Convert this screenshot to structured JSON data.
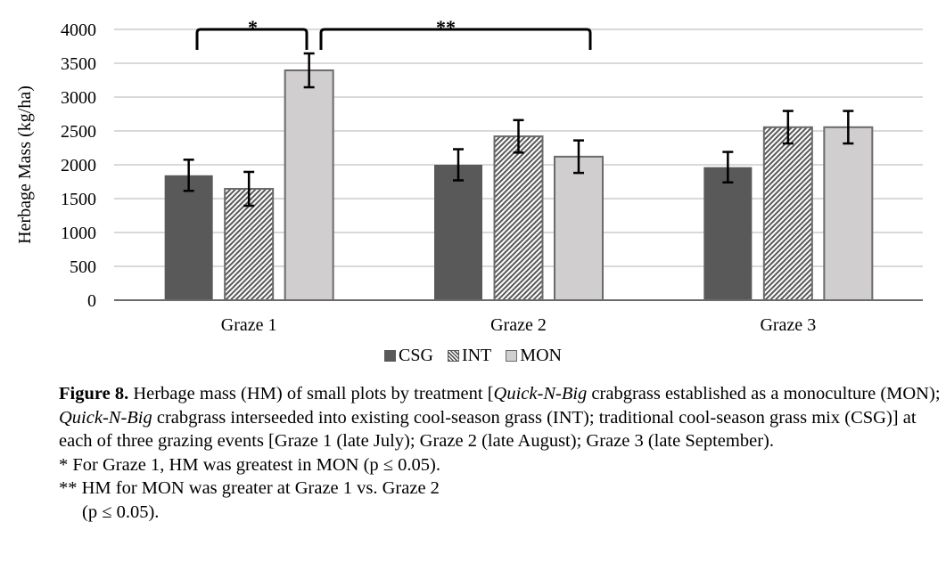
{
  "chart_data": {
    "type": "bar",
    "title": "",
    "xlabel": "",
    "ylabel": "Herbage Mass (kg/ha)",
    "ylim": [
      0,
      4000
    ],
    "yticks": [
      0,
      500,
      1000,
      1500,
      2000,
      2500,
      3000,
      3500,
      4000
    ],
    "grid": true,
    "categories": [
      "Graze 1",
      "Graze 2",
      "Graze 3"
    ],
    "series": [
      {
        "name": "CSG",
        "values": [
          1845,
          2000,
          1965
        ],
        "errors": [
          230,
          230,
          225
        ],
        "color": "#595959",
        "pattern": "solid"
      },
      {
        "name": "INT",
        "values": [
          1645,
          2420,
          2555
        ],
        "errors": [
          250,
          240,
          240
        ],
        "color": "#595959",
        "pattern": "hatch"
      },
      {
        "name": "MON",
        "values": [
          3395,
          2120,
          2555
        ],
        "errors": [
          250,
          240,
          240
        ],
        "color": "#d0cece",
        "pattern": "solid"
      }
    ],
    "legend_position": "bottom",
    "annotations": [
      {
        "label": "*",
        "from": "Graze 1 CSG",
        "to": "Graze 1 MON"
      },
      {
        "label": "**",
        "from": "Graze 1 MON",
        "to": "Graze 2 MON"
      }
    ]
  },
  "legend": {
    "items": [
      "CSG",
      "INT",
      "MON"
    ]
  },
  "caption": {
    "figure_label": "Figure 8.",
    "text_1": " Herbage mass (HM) of small plots by treatment [",
    "italic_1": "Quick-N-Big",
    "text_2": " crabgrass established as a monoculture (MON); ",
    "italic_2": "Quick-N-Big",
    "text_3": " crabgrass interseeded into existing cool-season grass (INT); traditional cool-season grass mix (CSG)] at each of three grazing events [Graze 1 (late July); Graze 2 (late August); Graze 3 (late September).",
    "note_1": "* For Graze 1, HM was greatest in MON (p ≤ 0.05).",
    "note_2a": "** HM for MON was greater at Graze 1 vs. Graze 2",
    "note_2b": "(p ≤ 0.05)."
  }
}
